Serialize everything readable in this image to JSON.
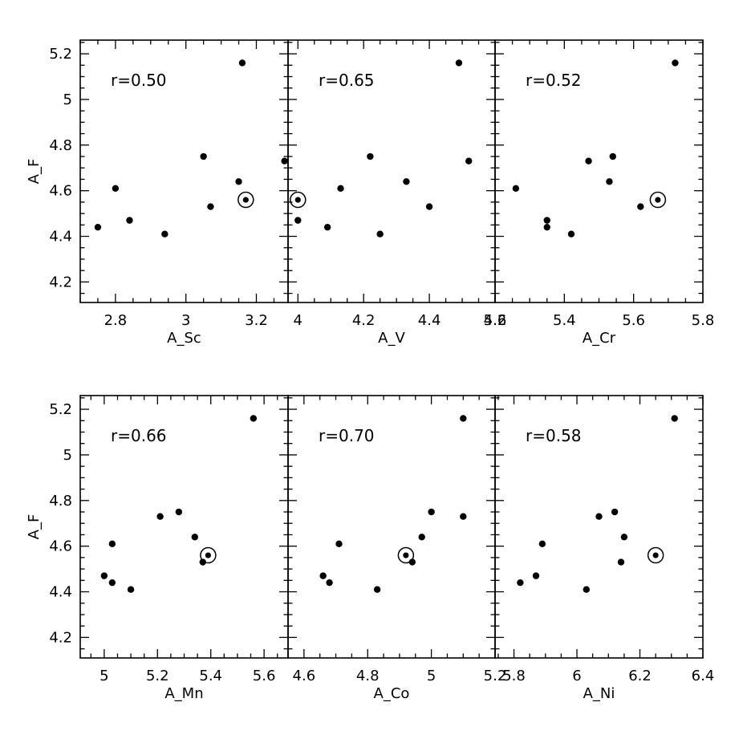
{
  "chart_data": [
    {
      "type": "scatter",
      "xlabel": "A_Sc",
      "ylabel": "A_F",
      "annotation": "r=0.50",
      "xlim": [
        2.7,
        3.29
      ],
      "ylim": [
        4.11,
        5.26
      ],
      "xticks": [
        2.8,
        3,
        3.2
      ],
      "yticks": [
        4.2,
        4.4,
        4.6,
        4.8,
        5,
        5.2
      ],
      "points": [
        {
          "x": 2.75,
          "y": 4.44
        },
        {
          "x": 2.8,
          "y": 4.61
        },
        {
          "x": 2.84,
          "y": 4.47
        },
        {
          "x": 2.94,
          "y": 4.41
        },
        {
          "x": 3.05,
          "y": 4.75
        },
        {
          "x": 3.07,
          "y": 4.53
        },
        {
          "x": 3.15,
          "y": 4.64
        },
        {
          "x": 3.16,
          "y": 5.16
        },
        {
          "x": 3.28,
          "y": 4.73
        }
      ],
      "sun": {
        "x": 3.17,
        "y": 4.56
      }
    },
    {
      "type": "scatter",
      "xlabel": "A_V",
      "ylabel": "",
      "annotation": "r=0.65",
      "xlim": [
        3.97,
        4.6
      ],
      "ylim": [
        4.11,
        5.26
      ],
      "xticks": [
        4,
        4.2,
        4.4,
        4.6
      ],
      "yticks": [
        4.2,
        4.4,
        4.6,
        4.8,
        5,
        5.2
      ],
      "points": [
        {
          "x": 4.0,
          "y": 4.47
        },
        {
          "x": 4.09,
          "y": 4.44
        },
        {
          "x": 4.13,
          "y": 4.61
        },
        {
          "x": 4.22,
          "y": 4.75
        },
        {
          "x": 4.25,
          "y": 4.41
        },
        {
          "x": 4.33,
          "y": 4.64
        },
        {
          "x": 4.4,
          "y": 4.53
        },
        {
          "x": 4.49,
          "y": 5.16
        },
        {
          "x": 4.52,
          "y": 4.73
        }
      ],
      "sun": {
        "x": 4.0,
        "y": 4.56
      }
    },
    {
      "type": "scatter",
      "xlabel": "A_Cr",
      "ylabel": "",
      "annotation": "r=0.52",
      "xlim": [
        5.2,
        5.8
      ],
      "ylim": [
        4.11,
        5.26
      ],
      "xticks": [
        5.2,
        5.4,
        5.6,
        5.8
      ],
      "yticks": [
        4.2,
        4.4,
        4.6,
        4.8,
        5,
        5.2
      ],
      "points": [
        {
          "x": 5.26,
          "y": 4.61
        },
        {
          "x": 5.35,
          "y": 4.47
        },
        {
          "x": 5.35,
          "y": 4.44
        },
        {
          "x": 5.42,
          "y": 4.41
        },
        {
          "x": 5.47,
          "y": 4.73
        },
        {
          "x": 5.53,
          "y": 4.64
        },
        {
          "x": 5.54,
          "y": 4.75
        },
        {
          "x": 5.62,
          "y": 4.53
        },
        {
          "x": 5.72,
          "y": 5.16
        }
      ],
      "sun": {
        "x": 5.67,
        "y": 4.56
      }
    },
    {
      "type": "scatter",
      "xlabel": "A_Mn",
      "ylabel": "A_F",
      "annotation": "r=0.66",
      "xlim": [
        4.91,
        5.69
      ],
      "ylim": [
        4.11,
        5.26
      ],
      "xticks": [
        5,
        5.2,
        5.4,
        5.6
      ],
      "yticks": [
        4.2,
        4.4,
        4.6,
        4.8,
        5,
        5.2
      ],
      "points": [
        {
          "x": 5.0,
          "y": 4.47
        },
        {
          "x": 5.03,
          "y": 4.44
        },
        {
          "x": 5.03,
          "y": 4.61
        },
        {
          "x": 5.1,
          "y": 4.41
        },
        {
          "x": 5.21,
          "y": 4.73
        },
        {
          "x": 5.28,
          "y": 4.75
        },
        {
          "x": 5.34,
          "y": 4.64
        },
        {
          "x": 5.37,
          "y": 4.53
        },
        {
          "x": 5.56,
          "y": 5.16
        }
      ],
      "sun": {
        "x": 5.39,
        "y": 4.56
      }
    },
    {
      "type": "scatter",
      "xlabel": "A_Co",
      "ylabel": "",
      "annotation": "r=0.70",
      "xlim": [
        4.55,
        5.2
      ],
      "ylim": [
        4.11,
        5.26
      ],
      "xticks": [
        4.6,
        4.8,
        5,
        5.2
      ],
      "yticks": [
        4.2,
        4.4,
        4.6,
        4.8,
        5,
        5.2
      ],
      "points": [
        {
          "x": 4.66,
          "y": 4.47
        },
        {
          "x": 4.68,
          "y": 4.44
        },
        {
          "x": 4.71,
          "y": 4.61
        },
        {
          "x": 4.83,
          "y": 4.41
        },
        {
          "x": 4.94,
          "y": 4.53
        },
        {
          "x": 4.97,
          "y": 4.64
        },
        {
          "x": 5.0,
          "y": 4.75
        },
        {
          "x": 5.1,
          "y": 4.73
        },
        {
          "x": 5.1,
          "y": 5.16
        }
      ],
      "sun": {
        "x": 4.92,
        "y": 4.56
      }
    },
    {
      "type": "scatter",
      "xlabel": "A_Ni",
      "ylabel": "",
      "annotation": "r=0.58",
      "xlim": [
        5.74,
        6.4
      ],
      "ylim": [
        4.11,
        5.26
      ],
      "xticks": [
        5.8,
        6,
        6.2,
        6.4
      ],
      "yticks": [
        4.2,
        4.4,
        4.6,
        4.8,
        5,
        5.2
      ],
      "points": [
        {
          "x": 5.82,
          "y": 4.44
        },
        {
          "x": 5.87,
          "y": 4.47
        },
        {
          "x": 5.89,
          "y": 4.61
        },
        {
          "x": 6.03,
          "y": 4.41
        },
        {
          "x": 6.07,
          "y": 4.73
        },
        {
          "x": 6.12,
          "y": 4.75
        },
        {
          "x": 6.14,
          "y": 4.53
        },
        {
          "x": 6.15,
          "y": 4.64
        },
        {
          "x": 6.31,
          "y": 5.16
        }
      ],
      "sun": {
        "x": 6.25,
        "y": 4.56
      }
    }
  ]
}
